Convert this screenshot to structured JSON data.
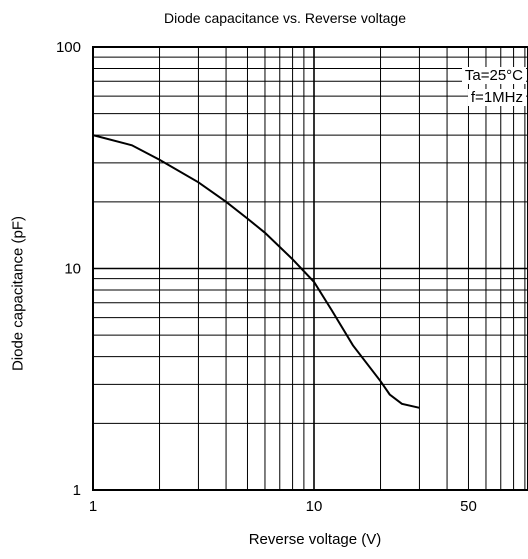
{
  "chart_data": {
    "type": "line",
    "title": "Diode capacitance vs. Reverse voltage",
    "xlabel": "Reverse voltage (V)",
    "ylabel": "Diode capacitance (pF)",
    "xscale": "log",
    "yscale": "log",
    "xlim": [
      1,
      100
    ],
    "ylim": [
      1,
      100
    ],
    "x_ticks": [
      {
        "value": 1,
        "label": "1"
      },
      {
        "value": 10,
        "label": "10"
      },
      {
        "value": 50,
        "label": "50"
      }
    ],
    "y_ticks": [
      {
        "value": 1,
        "label": "1"
      },
      {
        "value": 10,
        "label": "10"
      },
      {
        "value": 100,
        "label": "100"
      }
    ],
    "grid": true,
    "annotations": [
      "Ta=25°C",
      "f=1MHz"
    ],
    "series": [
      {
        "x": [
          1,
          1.5,
          2,
          3,
          4,
          5,
          6,
          8,
          10,
          12,
          15,
          20,
          22,
          25,
          30
        ],
        "y": [
          40,
          36,
          31,
          24.5,
          20,
          16.8,
          14.5,
          11,
          8.7,
          6.5,
          4.5,
          3.1,
          2.7,
          2.45,
          2.35
        ]
      }
    ]
  }
}
